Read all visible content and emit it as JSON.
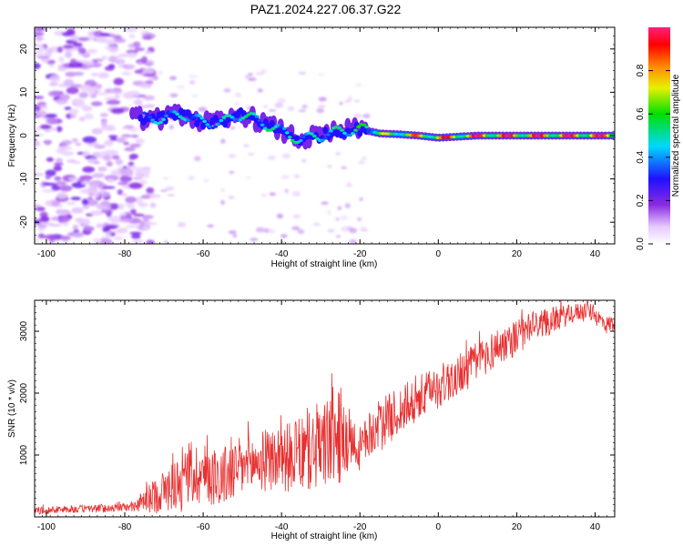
{
  "title": "PAZ1.2024.227.06.37.G22",
  "chart_data": [
    {
      "type": "heatmap",
      "xlabel": "Height of straight line (km)",
      "ylabel": "Frequency (Hz)",
      "xlim": [
        -103,
        45
      ],
      "ylim": [
        -25,
        25
      ],
      "x_ticks": [
        -100,
        -80,
        -60,
        -40,
        -20,
        0,
        20,
        40
      ],
      "y_ticks": [
        -20,
        -10,
        0,
        10,
        20
      ],
      "colorbar": {
        "label": "Normalized spectral amplitude",
        "range": [
          0,
          1
        ],
        "ticks": [
          0.0,
          0.2,
          0.4,
          0.6,
          0.8
        ],
        "colormap": "white-violet-blue-cyan-green-yellow-orange-red-pink"
      },
      "ridge": {
        "description_points": [
          {
            "x": -75,
            "y": 4,
            "amp": 0.45
          },
          {
            "x": -70,
            "y": 4,
            "amp": 0.5
          },
          {
            "x": -65,
            "y": 5,
            "amp": 0.5
          },
          {
            "x": -60,
            "y": 3,
            "amp": 0.45
          },
          {
            "x": -55,
            "y": 3,
            "amp": 0.5
          },
          {
            "x": -50,
            "y": 5,
            "amp": 0.55
          },
          {
            "x": -45,
            "y": 3,
            "amp": 0.55
          },
          {
            "x": -40,
            "y": 1,
            "amp": 0.55
          },
          {
            "x": -35,
            "y": -1,
            "amp": 0.55
          },
          {
            "x": -30,
            "y": 0,
            "amp": 0.5
          },
          {
            "x": -25,
            "y": 1,
            "amp": 0.55
          },
          {
            "x": -20,
            "y": 1.5,
            "amp": 0.6
          },
          {
            "x": -15,
            "y": 0.5,
            "amp": 0.7
          },
          {
            "x": -10,
            "y": 0.3,
            "amp": 0.85
          },
          {
            "x": -5,
            "y": 0,
            "amp": 0.9
          },
          {
            "x": 0,
            "y": -0.5,
            "amp": 0.95
          },
          {
            "x": 10,
            "y": 0,
            "amp": 1.0
          },
          {
            "x": 20,
            "y": 0,
            "amp": 1.0
          },
          {
            "x": 30,
            "y": 0,
            "amp": 1.0
          },
          {
            "x": 40,
            "y": 0,
            "amp": 1.0
          },
          {
            "x": 45,
            "y": 0,
            "amp": 1.0
          }
        ]
      }
    },
    {
      "type": "line",
      "xlabel": "Height of straight line (km)",
      "ylabel": "SNR (10 * v/v)",
      "xlim": [
        -103,
        45
      ],
      "ylim": [
        0,
        3500
      ],
      "x_ticks": [
        -100,
        -80,
        -60,
        -40,
        -20,
        0,
        20,
        40
      ],
      "y_ticks": [
        1000,
        2000,
        3000
      ],
      "line_color": "#e83030",
      "series": [
        {
          "x": [
            -103,
            -95,
            -85,
            -78,
            -72,
            -68,
            -64,
            -60,
            -55,
            -50,
            -45,
            -40,
            -35,
            -30,
            -27,
            -24,
            -21,
            -18,
            -15,
            -10,
            -5,
            0,
            5,
            10,
            15,
            20,
            25,
            30,
            35,
            38,
            40,
            43,
            45
          ],
          "values": [
            100,
            120,
            140,
            160,
            350,
            500,
            700,
            700,
            650,
            800,
            900,
            950,
            1000,
            1100,
            1300,
            1300,
            1000,
            1300,
            1500,
            1700,
            1900,
            2100,
            2300,
            2500,
            2750,
            2900,
            3100,
            3200,
            3300,
            3350,
            3250,
            3100,
            3150
          ],
          "spread": [
            60,
            60,
            70,
            70,
            300,
            400,
            550,
            500,
            500,
            500,
            500,
            550,
            600,
            700,
            800,
            800,
            350,
            350,
            400,
            400,
            400,
            350,
            350,
            350,
            300,
            300,
            250,
            200,
            150,
            150,
            150,
            150,
            150
          ]
        }
      ]
    }
  ]
}
